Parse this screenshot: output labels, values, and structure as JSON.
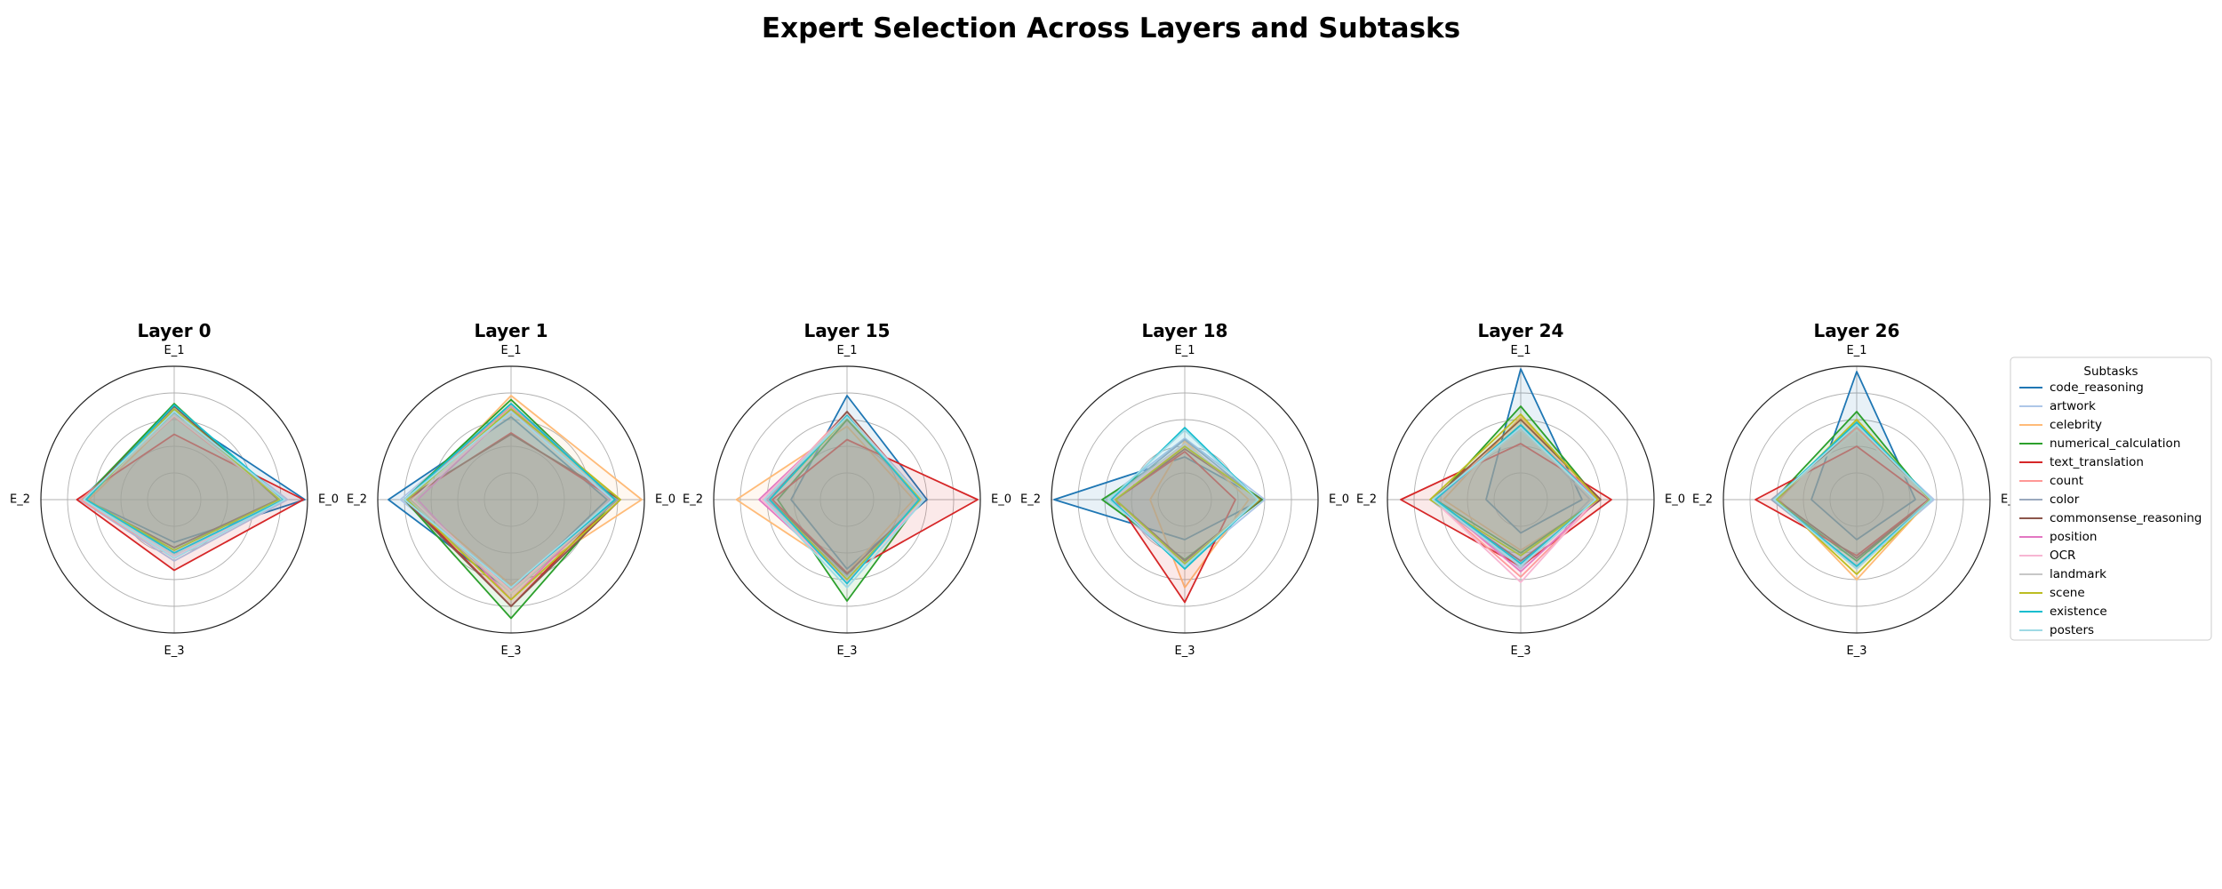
{
  "figure": {
    "title": "Expert Selection Across Layers and Subtasks"
  },
  "legend": {
    "title": "Subtasks",
    "placement": "right"
  },
  "chart_data": {
    "type": "radar",
    "axes": [
      "E_0",
      "E_1",
      "E_2",
      "E_3"
    ],
    "grid": true,
    "rlim": [
      0,
      1
    ],
    "note_values": "normalized radial fraction of outer circle, read from figure",
    "series": [
      {
        "name": "code_reasoning",
        "color": "#1f77b4"
      },
      {
        "name": "artwork",
        "color": "#aec7e8"
      },
      {
        "name": "celebrity",
        "color": "#ffbb78"
      },
      {
        "name": "numerical_calculation",
        "color": "#2ca02c"
      },
      {
        "name": "text_translation",
        "color": "#d62728"
      },
      {
        "name": "count",
        "color": "#ff9896"
      },
      {
        "name": "color",
        "color": "#9aa9be"
      },
      {
        "name": "commonsense_reasoning",
        "color": "#8c564b"
      },
      {
        "name": "position",
        "color": "#e377c2"
      },
      {
        "name": "OCR",
        "color": "#f7b6d2"
      },
      {
        "name": "landmark",
        "color": "#c7c7c7"
      },
      {
        "name": "scene",
        "color": "#bcbd22"
      },
      {
        "name": "existence",
        "color": "#17becf"
      },
      {
        "name": "posters",
        "color": "#9edae5"
      }
    ],
    "panels": [
      {
        "title": "Layer 0",
        "values": [
          [
            0.98,
            0.65,
            0.67,
            0.32
          ],
          [
            0.85,
            0.66,
            0.71,
            0.46
          ],
          [
            0.8,
            0.63,
            0.64,
            0.44
          ],
          [
            0.78,
            0.72,
            0.69,
            0.38
          ],
          [
            0.97,
            0.49,
            0.73,
            0.53
          ],
          [
            0.8,
            0.62,
            0.7,
            0.44
          ],
          [
            0.82,
            0.64,
            0.67,
            0.42
          ],
          [
            0.78,
            0.7,
            0.68,
            0.36
          ],
          [
            0.8,
            0.64,
            0.67,
            0.42
          ],
          [
            0.81,
            0.63,
            0.68,
            0.43
          ],
          [
            0.8,
            0.64,
            0.67,
            0.42
          ],
          [
            0.79,
            0.68,
            0.66,
            0.38
          ],
          [
            0.82,
            0.71,
            0.66,
            0.4
          ],
          [
            0.83,
            0.66,
            0.68,
            0.44
          ]
        ]
      },
      {
        "title": "Layer 1",
        "values": [
          [
            0.72,
            0.62,
            0.92,
            0.69
          ],
          [
            0.8,
            0.7,
            0.83,
            0.66
          ],
          [
            0.98,
            0.78,
            0.75,
            0.64
          ],
          [
            0.78,
            0.75,
            0.8,
            0.89
          ],
          [
            0.78,
            0.5,
            0.78,
            0.8
          ],
          [
            0.77,
            0.7,
            0.8,
            0.7
          ],
          [
            0.8,
            0.72,
            0.8,
            0.7
          ],
          [
            0.82,
            0.49,
            0.8,
            0.8
          ],
          [
            0.75,
            0.67,
            0.7,
            0.75
          ],
          [
            0.76,
            0.66,
            0.74,
            0.69
          ],
          [
            0.78,
            0.68,
            0.78,
            0.7
          ],
          [
            0.82,
            0.68,
            0.78,
            0.75
          ],
          [
            0.78,
            0.72,
            0.8,
            0.66
          ],
          [
            0.76,
            0.66,
            0.8,
            0.66
          ]
        ]
      },
      {
        "title": "Layer 15",
        "values": [
          [
            0.6,
            0.78,
            0.42,
            0.52
          ],
          [
            0.58,
            0.62,
            0.58,
            0.6
          ],
          [
            0.5,
            0.55,
            0.83,
            0.55
          ],
          [
            0.56,
            0.6,
            0.52,
            0.76
          ],
          [
            0.98,
            0.45,
            0.56,
            0.55
          ],
          [
            0.57,
            0.66,
            0.62,
            0.6
          ],
          [
            0.58,
            0.64,
            0.6,
            0.58
          ],
          [
            0.56,
            0.66,
            0.58,
            0.56
          ],
          [
            0.58,
            0.63,
            0.66,
            0.6
          ],
          [
            0.57,
            0.64,
            0.64,
            0.61
          ],
          [
            0.56,
            0.64,
            0.62,
            0.59
          ],
          [
            0.55,
            0.62,
            0.58,
            0.6
          ],
          [
            0.54,
            0.63,
            0.58,
            0.63
          ],
          [
            0.58,
            0.62,
            0.62,
            0.66
          ]
        ]
      },
      {
        "title": "Layer 18",
        "values": [
          [
            0.58,
            0.32,
            0.98,
            0.3
          ],
          [
            0.6,
            0.46,
            0.6,
            0.5
          ],
          [
            0.48,
            0.44,
            0.26,
            0.66
          ],
          [
            0.58,
            0.4,
            0.62,
            0.45
          ],
          [
            0.38,
            0.36,
            0.52,
            0.77
          ],
          [
            0.55,
            0.42,
            0.55,
            0.48
          ],
          [
            0.56,
            0.45,
            0.56,
            0.5
          ],
          [
            0.57,
            0.38,
            0.52,
            0.46
          ],
          [
            0.55,
            0.4,
            0.56,
            0.48
          ],
          [
            0.55,
            0.41,
            0.55,
            0.48
          ],
          [
            0.54,
            0.42,
            0.56,
            0.5
          ],
          [
            0.56,
            0.4,
            0.52,
            0.48
          ],
          [
            0.55,
            0.54,
            0.55,
            0.52
          ],
          [
            0.55,
            0.52,
            0.57,
            0.5
          ]
        ]
      },
      {
        "title": "Layer 24",
        "values": [
          [
            0.46,
            0.98,
            0.26,
            0.25
          ],
          [
            0.52,
            0.54,
            0.64,
            0.52
          ],
          [
            0.6,
            0.62,
            0.58,
            0.38
          ],
          [
            0.58,
            0.7,
            0.64,
            0.4
          ],
          [
            0.68,
            0.42,
            0.9,
            0.5
          ],
          [
            0.58,
            0.56,
            0.66,
            0.58
          ],
          [
            0.56,
            0.52,
            0.68,
            0.5
          ],
          [
            0.6,
            0.6,
            0.66,
            0.46
          ],
          [
            0.58,
            0.54,
            0.64,
            0.54
          ],
          [
            0.56,
            0.52,
            0.66,
            0.62
          ],
          [
            0.56,
            0.52,
            0.66,
            0.5
          ],
          [
            0.58,
            0.64,
            0.68,
            0.42
          ],
          [
            0.56,
            0.56,
            0.64,
            0.48
          ],
          [
            0.56,
            0.54,
            0.66,
            0.5
          ]
        ]
      },
      {
        "title": "Layer 26",
        "values": [
          [
            0.44,
            0.96,
            0.34,
            0.3
          ],
          [
            0.58,
            0.54,
            0.62,
            0.5
          ],
          [
            0.55,
            0.6,
            0.58,
            0.6
          ],
          [
            0.54,
            0.66,
            0.62,
            0.46
          ],
          [
            0.54,
            0.4,
            0.76,
            0.42
          ],
          [
            0.56,
            0.54,
            0.62,
            0.52
          ],
          [
            0.55,
            0.52,
            0.64,
            0.5
          ],
          [
            0.55,
            0.56,
            0.6,
            0.44
          ],
          [
            0.55,
            0.52,
            0.62,
            0.5
          ],
          [
            0.55,
            0.52,
            0.62,
            0.5
          ],
          [
            0.55,
            0.52,
            0.62,
            0.5
          ],
          [
            0.55,
            0.6,
            0.6,
            0.56
          ],
          [
            0.56,
            0.58,
            0.62,
            0.5
          ],
          [
            0.56,
            0.56,
            0.62,
            0.52
          ]
        ]
      }
    ]
  }
}
